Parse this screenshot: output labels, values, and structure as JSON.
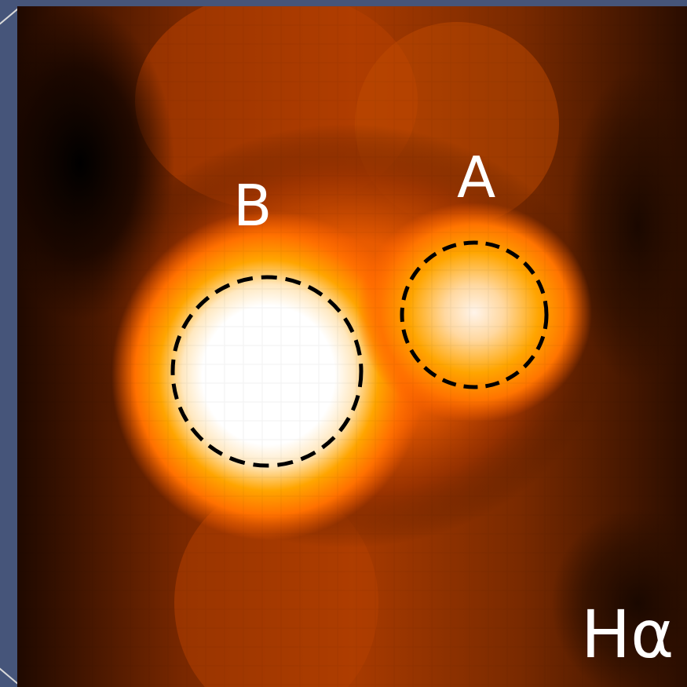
{
  "labels": {
    "source_a": "A",
    "source_b": "B",
    "band": "Hα"
  },
  "colors": {
    "frame": "#46557a",
    "aperture_outline": "#000000",
    "label_text": "#ffffff",
    "colormap": [
      "#000000",
      "#3a1400",
      "#8a2e00",
      "#e05a00",
      "#ff7a00",
      "#ffa500",
      "#ffd890",
      "#ffffff"
    ]
  },
  "apertures": [
    {
      "name": "A",
      "style": "dashed-circle"
    },
    {
      "name": "B",
      "style": "dashed-circle"
    }
  ]
}
